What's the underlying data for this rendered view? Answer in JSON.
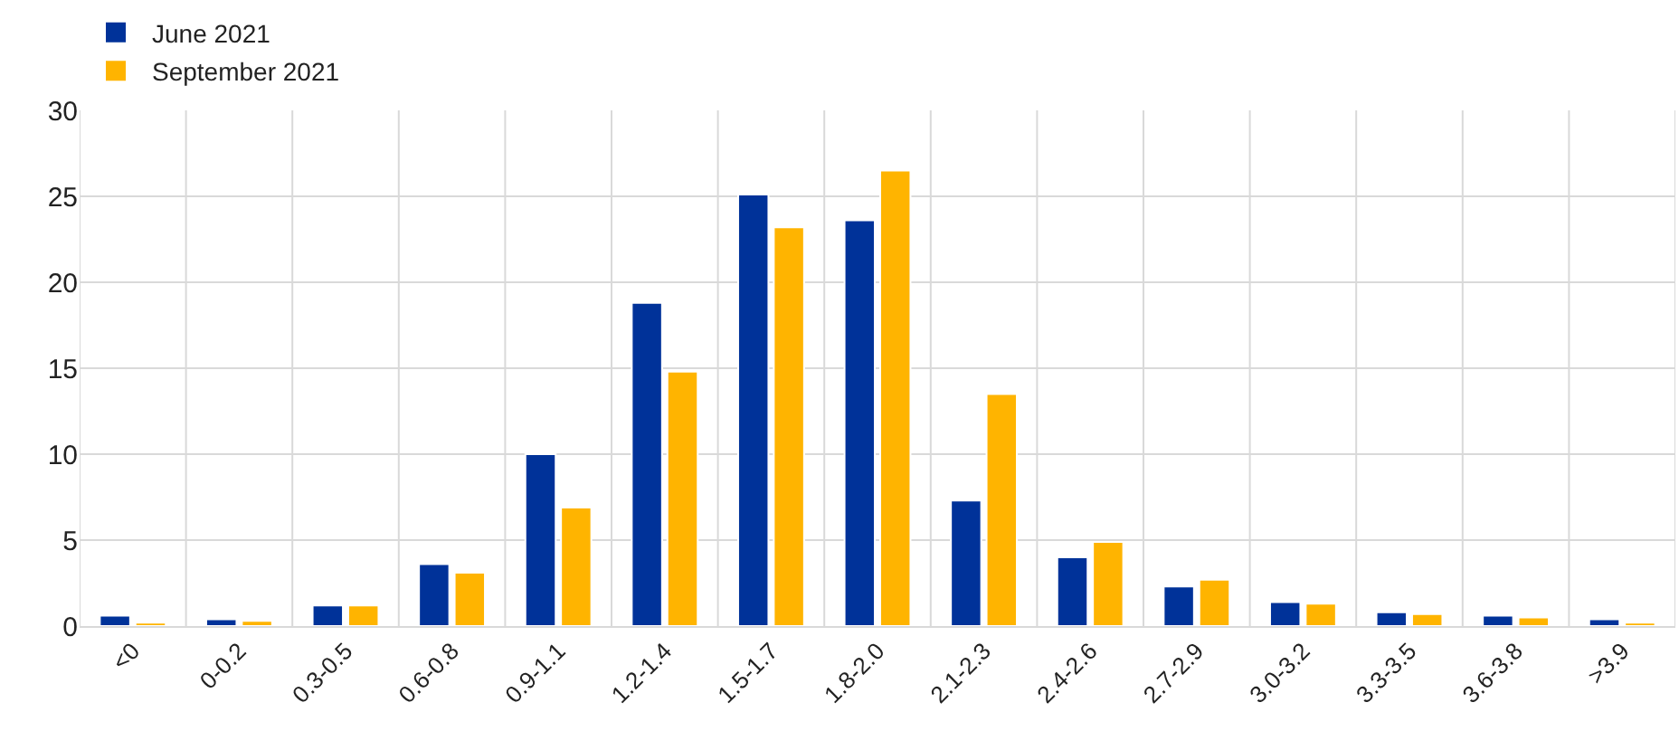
{
  "chart_data": {
    "type": "bar",
    "categories": [
      "<0",
      "0-0.2",
      "0.3-0.5",
      "0.6-0.8",
      "0.9-1.1",
      "1.2-1.4",
      "1.5-1.7",
      "1.8-2.0",
      "2.1-2.3",
      "2.4-2.6",
      "2.7-2.9",
      "3.0-3.2",
      "3.3-3.5",
      "3.6-3.8",
      ">3.9"
    ],
    "series": [
      {
        "name": "June 2021",
        "color": "#003299",
        "values": [
          0.6,
          0.4,
          1.2,
          3.6,
          10.0,
          18.8,
          25.1,
          23.6,
          7.3,
          4.0,
          2.3,
          1.4,
          0.8,
          0.6,
          0.4
        ]
      },
      {
        "name": "September 2021",
        "color": "#ffb400",
        "values": [
          0.2,
          0.3,
          1.2,
          3.1,
          6.9,
          14.8,
          23.2,
          26.5,
          13.5,
          4.9,
          2.7,
          1.3,
          0.7,
          0.5,
          0.2
        ]
      }
    ],
    "ylim": [
      0,
      30
    ],
    "yticks": [
      0,
      5,
      10,
      15,
      20,
      25,
      30
    ],
    "grid": true,
    "legend": "top left"
  }
}
